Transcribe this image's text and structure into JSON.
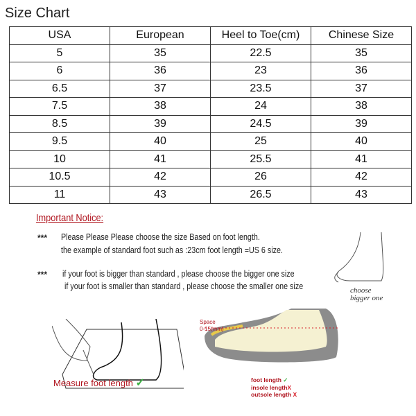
{
  "title": "Size Chart",
  "table": {
    "headers": [
      "USA",
      "European",
      "Heel to Toe(cm)",
      "Chinese Size"
    ],
    "rows": [
      [
        "5",
        "35",
        "22.5",
        "35"
      ],
      [
        "6",
        "36",
        "23",
        "36"
      ],
      [
        "6.5",
        "37",
        "23.5",
        "37"
      ],
      [
        "7.5",
        "38",
        "24",
        "38"
      ],
      [
        "8.5",
        "39",
        "24.5",
        "39"
      ],
      [
        "9.5",
        "40",
        "25",
        "40"
      ],
      [
        "10",
        "41",
        "25.5",
        "41"
      ],
      [
        "10.5",
        "42",
        "26",
        "42"
      ],
      [
        "11",
        "43",
        "26.5",
        "43"
      ]
    ]
  },
  "notice": {
    "heading": "Important Notice:",
    "bullet": "***",
    "lines": [
      "Please Please Please choose the size Based on foot length.",
      "the example of standard foot such as :23cm foot length =US 6 size.",
      "if your foot is bigger than standard , please choose the bigger one size",
      "if your foot is smaller than standard , please choose the smaller one size"
    ],
    "foot_caption_1": "choose",
    "foot_caption_2": "bigger one"
  },
  "measure": {
    "label": "Measure foot length",
    "check": "✓"
  },
  "shoe": {
    "space_1": "Space",
    "space_2": "0-15(mm)",
    "foot_length": "foot length",
    "insole_length": "insole length",
    "outsole_length": "outsole length",
    "check": "✓",
    "cross": "X"
  },
  "colors": {
    "notice": "#b0141e",
    "check": "#3cb043",
    "cross": "#d8202a"
  }
}
